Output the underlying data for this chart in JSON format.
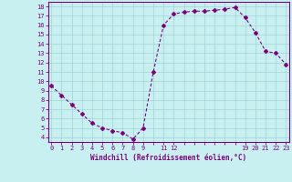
{
  "x": [
    0,
    1,
    2,
    3,
    4,
    5,
    6,
    7,
    8,
    9,
    10,
    11,
    12,
    13,
    14,
    15,
    16,
    17,
    18,
    19,
    20,
    21,
    22,
    23
  ],
  "y": [
    9.5,
    8.5,
    7.5,
    6.5,
    5.5,
    5.0,
    4.7,
    4.5,
    3.8,
    5.0,
    11.0,
    16.0,
    17.2,
    17.4,
    17.5,
    17.5,
    17.6,
    17.7,
    17.9,
    16.8,
    15.2,
    13.2,
    13.0,
    11.8
  ],
  "line_color": "#800080",
  "marker": "D",
  "marker_size": 2,
  "bg_color": "#c8f0f0",
  "grid_color": "#a0d4d4",
  "axis_color": "#800080",
  "xlabel": "Windchill (Refroidissement éolien,°C)",
  "xtick_positions": [
    0,
    1,
    2,
    3,
    4,
    5,
    6,
    7,
    8,
    9,
    11,
    12,
    19,
    20,
    21,
    22,
    23
  ],
  "ytick_positions": [
    4,
    5,
    6,
    7,
    8,
    9,
    10,
    11,
    12,
    13,
    14,
    15,
    16,
    17,
    18
  ],
  "xlim": [
    -0.3,
    23.3
  ],
  "ylim": [
    3.5,
    18.5
  ]
}
